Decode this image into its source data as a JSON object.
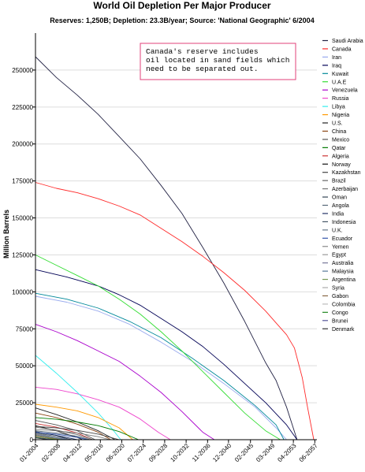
{
  "chart_data": {
    "type": "line",
    "title": "World Oil Depletion Per Major Producer",
    "subtitle": "Reserves: 1,250B; Depletion: 23.3B/year; Source: 'National Geographic' 6/2004",
    "ylabel": "Million Barrels",
    "ylim": [
      0,
      275000
    ],
    "yticks": [
      0,
      25000,
      50000,
      75000,
      100000,
      125000,
      150000,
      175000,
      200000,
      225000,
      250000
    ],
    "ytick_labels": [
      "0",
      "25000",
      "50000",
      "75000",
      "100000",
      "125000",
      "150000",
      "175000",
      "200000",
      "225000",
      "250000"
    ],
    "xlim": [
      2004.0,
      2057.8
    ],
    "xticks": [
      2004.0,
      2008.2,
      2012.3,
      2016.4,
      2020.5,
      2024.6,
      2028.7,
      2032.8,
      2036.9,
      2040.9,
      2045.1,
      2049.2,
      2053.3,
      2057.4
    ],
    "xtick_labels": [
      "01-2004",
      "02-2008",
      "04-2012",
      "05-2016",
      "06-2020",
      "07-2024",
      "09-2028",
      "10-2032",
      "11-2036",
      "12-2040",
      "02-2045",
      "03-2049",
      "04-2053",
      "06-2057"
    ],
    "grid": "horizontal",
    "legend_position": "right",
    "annotation": [
      "Canada's reserve includes",
      "oil located in sand fields which",
      "need to be separated out."
    ],
    "annotation_color": "#e0407a",
    "series": [
      {
        "name": "Saudi Arabia",
        "color": "#222244",
        "x": [
          2004,
          2008,
          2012,
          2016,
          2020,
          2024,
          2028,
          2032,
          2036,
          2040,
          2044,
          2048,
          2050,
          2052,
          2054
        ],
        "y": [
          259000,
          245000,
          233000,
          220000,
          205000,
          190000,
          172000,
          153000,
          130000,
          106000,
          80000,
          52000,
          40000,
          22000,
          0
        ]
      },
      {
        "name": "Canada",
        "color": "#ff2a2a",
        "x": [
          2004,
          2008,
          2012,
          2016,
          2020,
          2024,
          2028,
          2032,
          2036,
          2040,
          2044,
          2048,
          2050,
          2052,
          2053.5,
          2055,
          2056,
          2057.2
        ],
        "y": [
          174000,
          170000,
          167000,
          163000,
          158000,
          152000,
          143000,
          134000,
          124000,
          113000,
          101000,
          87000,
          79000,
          71000,
          62000,
          42000,
          22000,
          0
        ]
      },
      {
        "name": "Iran",
        "color": "#99aaee",
        "x": [
          2004,
          2010,
          2016,
          2022,
          2028,
          2034,
          2040,
          2046,
          2050,
          2052
        ],
        "y": [
          97000,
          93000,
          87000,
          78000,
          66000,
          53000,
          38000,
          22000,
          8000,
          0
        ]
      },
      {
        "name": "Iraq",
        "color": "#000055",
        "x": [
          2004,
          2010,
          2016,
          2020,
          2024,
          2028,
          2032,
          2036,
          2040,
          2044,
          2048,
          2052,
          2054
        ],
        "y": [
          115000,
          110000,
          104000,
          98000,
          91000,
          82000,
          73000,
          63000,
          51000,
          38000,
          25000,
          10000,
          0
        ]
      },
      {
        "name": "Kuwait",
        "color": "#008899",
        "x": [
          2004,
          2010,
          2016,
          2022,
          2028,
          2034,
          2040,
          2046,
          2050,
          2051.5
        ],
        "y": [
          99000,
          95000,
          89000,
          80000,
          69000,
          55000,
          40000,
          23000,
          10000,
          0
        ]
      },
      {
        "name": "U.A.E",
        "color": "#33dd33",
        "x": [
          2004,
          2008,
          2012,
          2016,
          2020,
          2024,
          2028,
          2032,
          2036,
          2040,
          2044,
          2048,
          2050.8
        ],
        "y": [
          125000,
          118000,
          111000,
          104000,
          95000,
          85000,
          73000,
          60000,
          46000,
          32000,
          18000,
          6000,
          0
        ]
      },
      {
        "name": "Venezuela",
        "color": "#aa00cc",
        "x": [
          2004,
          2008,
          2012,
          2016,
          2020,
          2024,
          2028,
          2032,
          2036,
          2038.2
        ],
        "y": [
          78000,
          73000,
          67000,
          60000,
          53000,
          43000,
          32000,
          19000,
          5000,
          0
        ]
      },
      {
        "name": "Russia",
        "color": "#ee44cc",
        "x": [
          2004,
          2008,
          2012,
          2016,
          2020,
          2024,
          2027.5,
          2029.8
        ],
        "y": [
          35500,
          34000,
          31000,
          27000,
          22000,
          14000,
          5000,
          0
        ]
      },
      {
        "name": "Libya",
        "color": "#33eeee",
        "x": [
          2004,
          2008,
          2012,
          2016,
          2018.5,
          2020.3
        ],
        "y": [
          57000,
          45000,
          32000,
          18000,
          8000,
          0
        ]
      },
      {
        "name": "Nigeria",
        "color": "#ff9900",
        "x": [
          2004,
          2008,
          2012,
          2016,
          2020,
          2022.6
        ],
        "y": [
          24000,
          22000,
          19500,
          15000,
          8000,
          0
        ]
      },
      {
        "name": "U.S.",
        "color": "#222222",
        "x": [
          2004,
          2008,
          2012,
          2016,
          2019.2
        ],
        "y": [
          21500,
          17000,
          12000,
          6000,
          0
        ]
      },
      {
        "name": "China",
        "color": "#8b4513",
        "x": [
          2004,
          2008,
          2012,
          2016,
          2018.4
        ],
        "y": [
          18000,
          15000,
          10500,
          5000,
          0
        ]
      },
      {
        "name": "Mexico",
        "color": "#555555",
        "x": [
          2004,
          2008,
          2012,
          2015.4
        ],
        "y": [
          13000,
          10000,
          6000,
          0
        ]
      },
      {
        "name": "Qatar",
        "color": "#007a00",
        "x": [
          2004,
          2008,
          2012,
          2016,
          2020,
          2023.7
        ],
        "y": [
          15000,
          13800,
          12000,
          9500,
          5500,
          0
        ]
      },
      {
        "name": "Algeria",
        "color": "#cc3333",
        "x": [
          2004,
          2008,
          2012,
          2014.9
        ],
        "y": [
          11000,
          8500,
          4500,
          0
        ]
      },
      {
        "name": "Norway",
        "color": "#111111",
        "x": [
          2004,
          2008,
          2012,
          2013.0
        ],
        "y": [
          9500,
          6000,
          1500,
          0
        ]
      },
      {
        "name": "Kazakhstan",
        "color": "#444444",
        "x": [
          2004,
          2008,
          2012,
          2016,
          2020.0
        ],
        "y": [
          9000,
          8000,
          6300,
          3800,
          0
        ]
      },
      {
        "name": "Brazil",
        "color": "#666666",
        "x": [
          2004,
          2008,
          2012,
          2015.0
        ],
        "y": [
          8500,
          6500,
          3400,
          0
        ]
      },
      {
        "name": "Azerbaijan",
        "color": "#777777",
        "x": [
          2004,
          2008,
          2012,
          2016,
          2018.3
        ],
        "y": [
          7000,
          6000,
          4500,
          2000,
          0
        ]
      },
      {
        "name": "Oman",
        "color": "#334455",
        "x": [
          2004,
          2008,
          2010.7
        ],
        "y": [
          5500,
          3000,
          0
        ]
      },
      {
        "name": "Angola",
        "color": "#556677",
        "x": [
          2004,
          2008,
          2012,
          2014.5
        ],
        "y": [
          6000,
          4500,
          2300,
          0
        ]
      },
      {
        "name": "India",
        "color": "#223366",
        "x": [
          2004,
          2008,
          2012.0
        ],
        "y": [
          5200,
          3000,
          0
        ]
      },
      {
        "name": "Indonesia",
        "color": "#445566",
        "x": [
          2004,
          2008,
          2011.0
        ],
        "y": [
          4700,
          2200,
          0
        ]
      },
      {
        "name": "U.K.",
        "color": "#667788",
        "x": [
          2004,
          2007,
          2009.0
        ],
        "y": [
          4500,
          2000,
          0
        ]
      },
      {
        "name": "Ecuador",
        "color": "#3355aa",
        "x": [
          2004,
          2008,
          2012,
          2014.0
        ],
        "y": [
          5000,
          3800,
          1600,
          0
        ]
      },
      {
        "name": "Yemen",
        "color": "#888888",
        "x": [
          2004,
          2007,
          2009.5
        ],
        "y": [
          4000,
          2000,
          0
        ]
      },
      {
        "name": "Egypt",
        "color": "#999999",
        "x": [
          2004,
          2007,
          2010.0
        ],
        "y": [
          3600,
          1800,
          0
        ]
      },
      {
        "name": "Australia",
        "color": "#777799",
        "x": [
          2004,
          2007,
          2010.5
        ],
        "y": [
          3500,
          1900,
          0
        ]
      },
      {
        "name": "Malaysia",
        "color": "#557799",
        "x": [
          2004,
          2007,
          2010.0
        ],
        "y": [
          3000,
          1500,
          0
        ]
      },
      {
        "name": "Argentina",
        "color": "#779955",
        "x": [
          2004,
          2007,
          2009.0
        ],
        "y": [
          2800,
          1200,
          0
        ]
      },
      {
        "name": "Syria",
        "color": "#aaaaaa",
        "x": [
          2004,
          2006,
          2008.0
        ],
        "y": [
          2500,
          1200,
          0
        ]
      },
      {
        "name": "Gabon",
        "color": "#886644",
        "x": [
          2004,
          2006,
          2008.5
        ],
        "y": [
          2500,
          1300,
          0
        ]
      },
      {
        "name": "Colombia",
        "color": "#bbbbbb",
        "x": [
          2004,
          2006,
          2007.5
        ],
        "y": [
          1800,
          800,
          0
        ]
      },
      {
        "name": "Congo",
        "color": "#228822",
        "x": [
          2004,
          2006,
          2008.0
        ],
        "y": [
          1600,
          700,
          0
        ]
      },
      {
        "name": "Brunei",
        "color": "#555599",
        "x": [
          2004,
          2006,
          2007.0
        ],
        "y": [
          1300,
          500,
          0
        ]
      },
      {
        "name": "Denmark",
        "color": "#333333",
        "x": [
          2004,
          2005.5,
          2006.5
        ],
        "y": [
          1200,
          500,
          0
        ]
      }
    ]
  }
}
